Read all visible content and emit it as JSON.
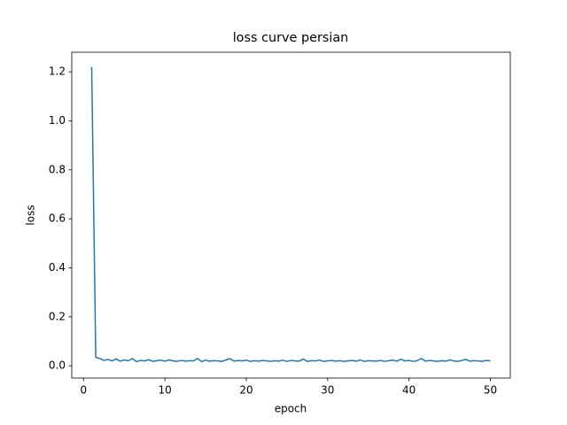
{
  "chart_data": {
    "type": "line",
    "title": "loss curve persian",
    "xlabel": "epoch",
    "ylabel": "loss",
    "color": "#1f77b4",
    "x": [
      1,
      1.5,
      2,
      2.5,
      3,
      3.5,
      4,
      4.5,
      5,
      5.5,
      6,
      6.5,
      7,
      7.5,
      8,
      8.5,
      9,
      9.5,
      10,
      10.5,
      11,
      11.5,
      12,
      12.5,
      13,
      13.5,
      14,
      14.5,
      15,
      15.5,
      16,
      16.5,
      17,
      17.5,
      18,
      18.5,
      19,
      19.5,
      20,
      20.5,
      21,
      21.5,
      22,
      22.5,
      23,
      23.5,
      24,
      24.5,
      25,
      25.5,
      26,
      26.5,
      27,
      27.5,
      28,
      28.5,
      29,
      29.5,
      30,
      30.5,
      31,
      31.5,
      32,
      32.5,
      33,
      33.5,
      34,
      34.5,
      35,
      35.5,
      36,
      36.5,
      37,
      37.5,
      38,
      38.5,
      39,
      39.5,
      40,
      40.5,
      41,
      41.5,
      42,
      42.5,
      43,
      43.5,
      44,
      44.5,
      45,
      45.5,
      46,
      46.5,
      47,
      47.5,
      48,
      48.5,
      49,
      49.5,
      50
    ],
    "values": [
      1.22,
      0.035,
      0.03,
      0.022,
      0.026,
      0.02,
      0.028,
      0.019,
      0.024,
      0.021,
      0.03,
      0.017,
      0.022,
      0.02,
      0.025,
      0.018,
      0.021,
      0.023,
      0.019,
      0.024,
      0.02,
      0.018,
      0.022,
      0.019,
      0.021,
      0.02,
      0.03,
      0.017,
      0.023,
      0.019,
      0.021,
      0.02,
      0.018,
      0.024,
      0.029,
      0.019,
      0.022,
      0.02,
      0.023,
      0.018,
      0.021,
      0.019,
      0.022,
      0.02,
      0.018,
      0.021,
      0.019,
      0.023,
      0.018,
      0.022,
      0.02,
      0.019,
      0.028,
      0.018,
      0.021,
      0.02,
      0.023,
      0.018,
      0.02,
      0.022,
      0.019,
      0.021,
      0.018,
      0.02,
      0.022,
      0.019,
      0.024,
      0.018,
      0.021,
      0.02,
      0.019,
      0.022,
      0.018,
      0.021,
      0.023,
      0.019,
      0.027,
      0.02,
      0.022,
      0.018,
      0.021,
      0.03,
      0.019,
      0.022,
      0.02,
      0.018,
      0.021,
      0.019,
      0.024,
      0.02,
      0.018,
      0.022,
      0.026,
      0.019,
      0.021,
      0.02,
      0.018,
      0.022,
      0.02
    ],
    "xlim": [
      -1.45,
      52.45
    ],
    "xticks": [
      0,
      10,
      20,
      30,
      40,
      50
    ],
    "ylim": [
      -0.05,
      1.28
    ],
    "yticks": [
      {
        "value": 0,
        "label": "0.0"
      },
      0.2,
      0.4,
      0.6,
      0.8,
      {
        "value": 1,
        "label": "1.0"
      },
      1.2
    ]
  }
}
